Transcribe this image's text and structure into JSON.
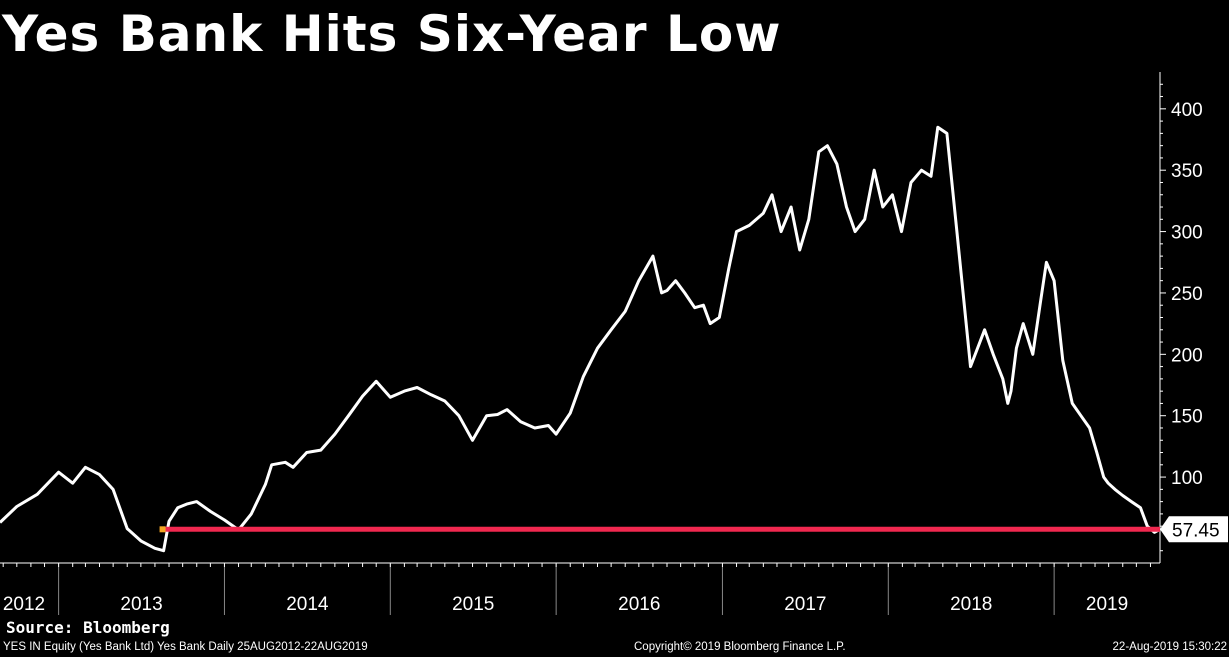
{
  "title": "Yes Bank Hits Six-Year Low",
  "source": "Source: Bloomberg",
  "footer": {
    "left": "YES IN Equity (Yes Bank Ltd) Yes Bank  Daily 25AUG2012-22AUG2019",
    "center": "Copyright© 2019 Bloomberg Finance L.P.",
    "right": "22-Aug-2019 15:30:22"
  },
  "colors": {
    "background": "#000000",
    "price_line": "#ffffff",
    "low_line": "#f0284f",
    "low_marker": "#f5a623"
  },
  "chart_data": {
    "type": "line",
    "title": "Yes Bank Hits Six-Year Low",
    "xlabel": "",
    "ylabel": "",
    "x_ticks": [
      "2012",
      "2013",
      "2014",
      "2015",
      "2016",
      "2017",
      "2018",
      "2019"
    ],
    "y_ticks": [
      100,
      150,
      200,
      250,
      300,
      350,
      400
    ],
    "xlim": [
      "2012-08-25",
      "2019-08-22"
    ],
    "ylim": [
      30,
      430
    ],
    "grid": false,
    "last_value_label": "57.45",
    "series": [
      {
        "x": [
          "2012-08-25",
          "2012-10-01",
          "2012-11-15",
          "2013-01-01",
          "2013-02-01",
          "2013-03-01",
          "2013-04-01",
          "2013-05-01",
          "2013-06-01",
          "2013-07-01",
          "2013-08-01",
          "2013-08-20",
          "2013-09-01",
          "2013-09-20",
          "2013-10-10",
          "2013-11-01",
          "2013-12-01",
          "2014-01-01",
          "2014-02-01",
          "2014-03-01",
          "2014-04-01",
          "2014-04-15",
          "2014-05-15",
          "2014-06-01",
          "2014-07-01",
          "2014-08-01",
          "2014-09-01",
          "2014-10-01",
          "2014-11-01",
          "2014-12-01",
          "2015-01-01",
          "2015-02-01",
          "2015-03-01",
          "2015-04-01",
          "2015-05-01",
          "2015-06-01",
          "2015-07-01",
          "2015-08-01",
          "2015-08-25",
          "2015-09-15",
          "2015-10-15",
          "2015-11-15",
          "2015-12-15",
          "2016-01-01",
          "2016-02-01",
          "2016-03-01",
          "2016-04-01",
          "2016-05-01",
          "2016-06-01",
          "2016-07-01",
          "2016-08-01",
          "2016-08-20",
          "2016-09-01",
          "2016-09-20",
          "2016-10-10",
          "2016-11-01",
          "2016-11-20",
          "2016-12-05",
          "2016-12-25",
          "2017-01-15",
          "2017-02-01",
          "2017-03-01",
          "2017-04-01",
          "2017-04-20",
          "2017-05-10",
          "2017-06-01",
          "2017-06-20",
          "2017-07-10",
          "2017-08-01",
          "2017-08-20",
          "2017-09-10",
          "2017-10-01",
          "2017-10-20",
          "2017-11-10",
          "2017-12-01",
          "2017-12-20",
          "2018-01-10",
          "2018-01-30",
          "2018-02-20",
          "2018-03-15",
          "2018-04-05",
          "2018-04-20",
          "2018-05-10",
          "2018-06-01",
          "2018-07-01",
          "2018-08-01",
          "2018-08-20",
          "2018-09-10",
          "2018-09-21",
          "2018-09-28",
          "2018-10-10",
          "2018-10-25",
          "2018-11-15",
          "2018-12-01",
          "2018-12-15",
          "2019-01-01",
          "2019-01-20",
          "2019-02-10",
          "2019-03-01",
          "2019-03-20",
          "2019-04-05",
          "2019-04-20",
          "2019-04-30",
          "2019-05-15",
          "2019-06-01",
          "2019-06-20",
          "2019-07-10",
          "2019-07-25",
          "2019-08-10",
          "2019-08-22"
        ],
        "y": [
          63,
          76,
          86,
          104,
          95,
          108,
          102,
          90,
          58,
          48,
          42,
          40,
          64,
          75,
          78,
          80,
          72,
          65,
          57,
          70,
          94,
          110,
          112,
          108,
          120,
          122,
          135,
          150,
          166,
          178,
          165,
          170,
          173,
          167,
          162,
          150,
          130,
          150,
          151,
          155,
          145,
          140,
          142,
          135,
          152,
          182,
          205,
          220,
          235,
          260,
          280,
          250,
          252,
          260,
          250,
          238,
          240,
          225,
          230,
          270,
          300,
          305,
          315,
          330,
          300,
          320,
          285,
          310,
          365,
          370,
          355,
          320,
          300,
          310,
          350,
          320,
          330,
          300,
          340,
          350,
          345,
          385,
          380,
          300,
          190,
          220,
          200,
          180,
          160,
          170,
          205,
          225,
          200,
          240,
          275,
          260,
          195,
          160,
          150,
          140,
          120,
          100,
          95,
          90,
          85,
          80,
          75,
          60,
          55,
          57.45
        ]
      }
    ],
    "reference_line": {
      "value": 57.45,
      "from": "2013-08-20",
      "to": "2019-08-22"
    }
  }
}
